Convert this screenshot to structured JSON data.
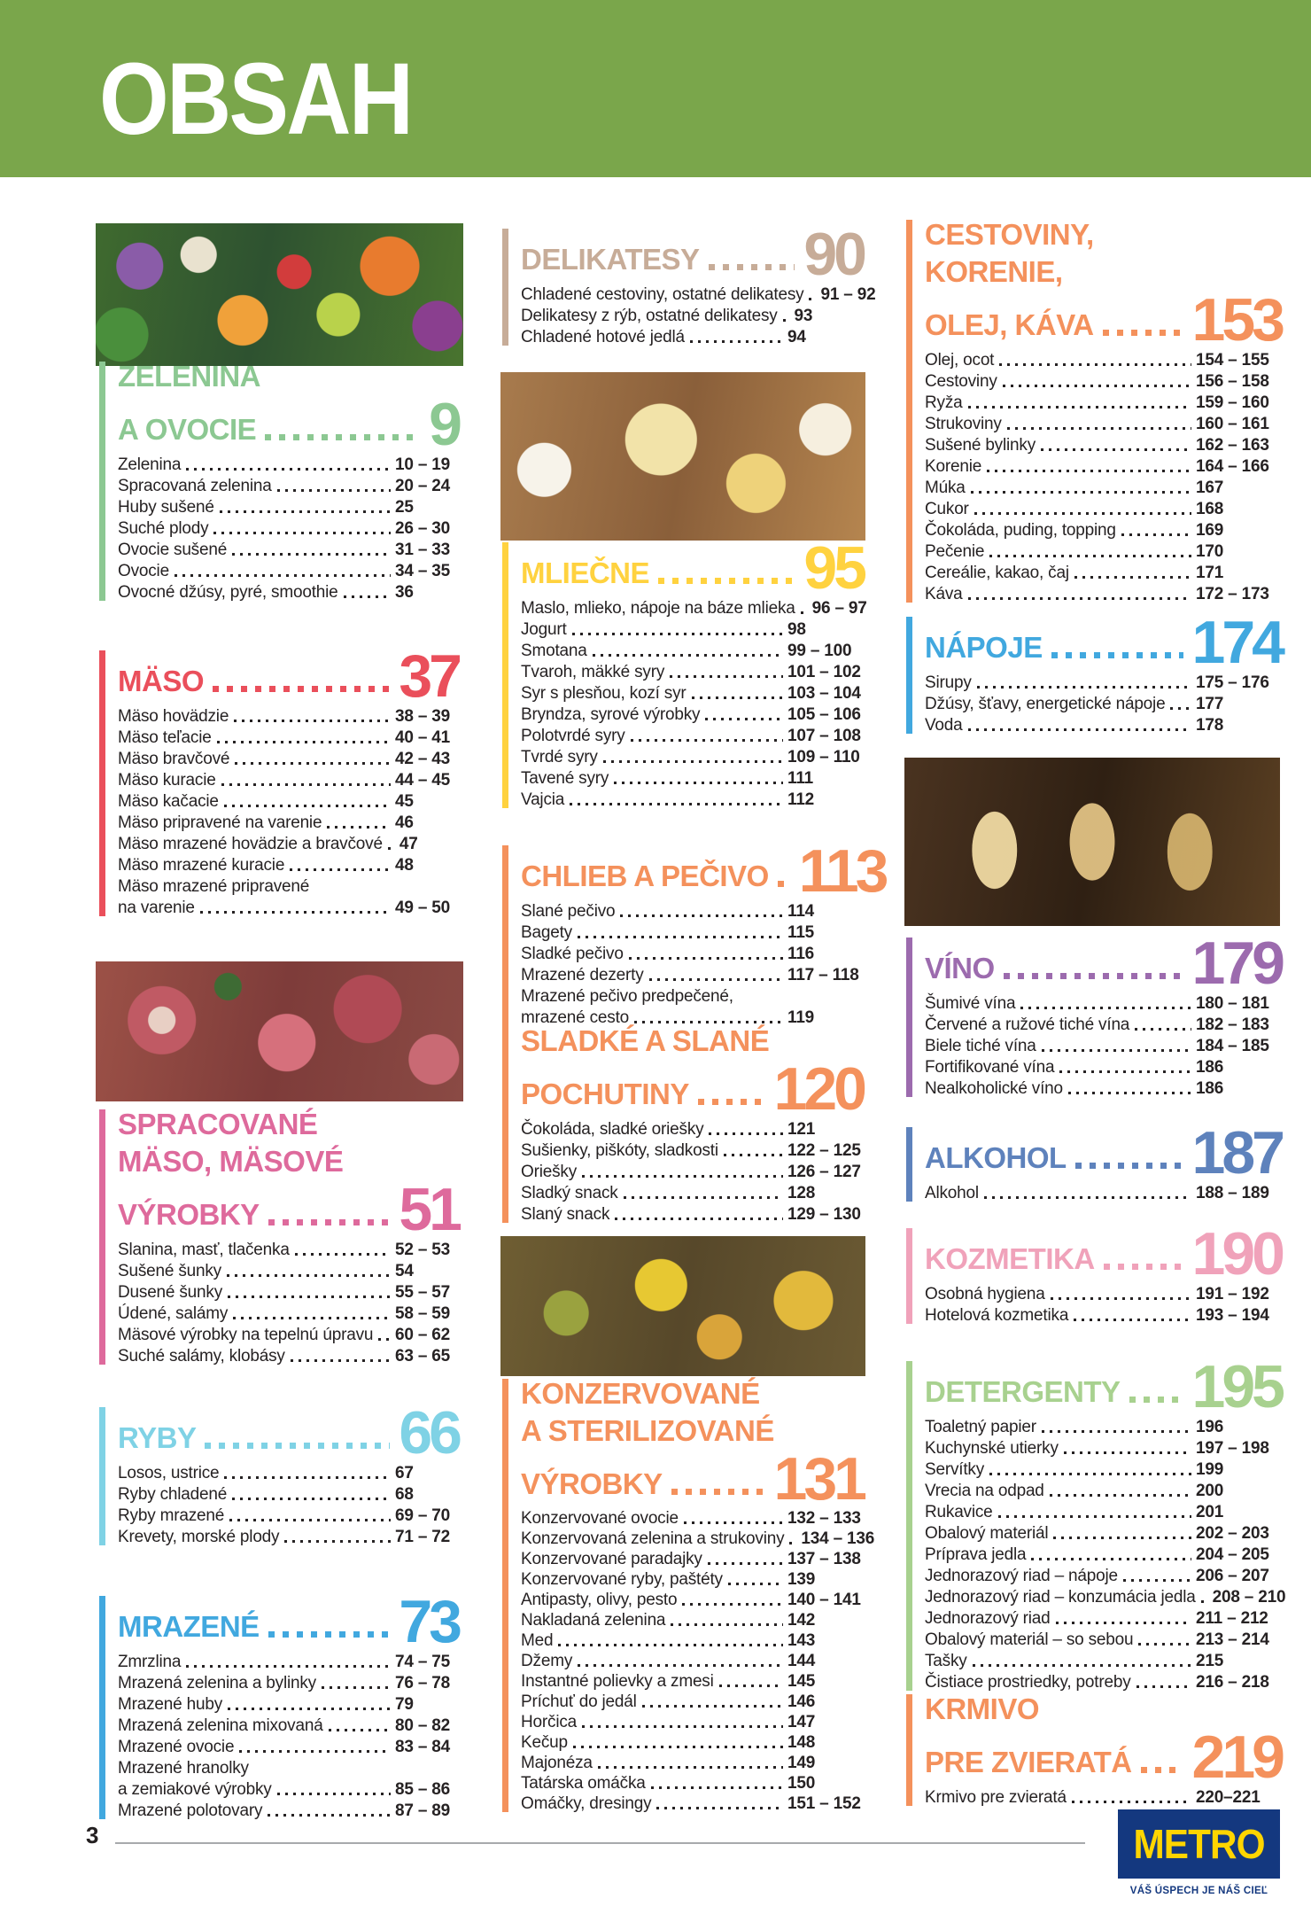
{
  "banner": {
    "title": "OBSAH"
  },
  "photos": {
    "veg": "vegetables-and-fruits-photo",
    "meat": "cold-cuts-platter-photo",
    "cheese": "cheese-and-dairy-photo",
    "jars": "preserved-vegetables-jars-photo",
    "wine": "wine-glasses-photo"
  },
  "sections": [
    {
      "id": "zelenina",
      "color": "#8CC892",
      "title_lines": [
        "ZELENINA",
        "A OVOCIE"
      ],
      "page": "9",
      "entries": [
        {
          "label": "Zelenina",
          "pages": "10 – 19"
        },
        {
          "label": "Spracovaná zelenina",
          "pages": "20 – 24"
        },
        {
          "label": "Huby sušené",
          "pages": "25"
        },
        {
          "label": "Suché plody",
          "pages": "26 – 30"
        },
        {
          "label": "Ovocie sušené",
          "pages": "31 – 33"
        },
        {
          "label": "Ovocie",
          "pages": "34 – 35"
        },
        {
          "label": "Ovocné džúsy, pyré, smoothie",
          "pages": "36"
        }
      ]
    },
    {
      "id": "maso",
      "color": "#EA4F5B",
      "title_lines": [
        "MÄSO"
      ],
      "page": "37",
      "entries": [
        {
          "label": "Mäso hovädzie",
          "pages": "38 – 39"
        },
        {
          "label": "Mäso teľacie",
          "pages": "40 – 41"
        },
        {
          "label": "Mäso bravčové",
          "pages": "42 – 43"
        },
        {
          "label": "Mäso kuracie",
          "pages": "44 – 45"
        },
        {
          "label": "Mäso kačacie",
          "pages": "45"
        },
        {
          "label": "Mäso pripravené na varenie",
          "pages": "46"
        },
        {
          "label": "Mäso mrazené hovädzie a bravčové",
          "pages": "47"
        },
        {
          "label": "Mäso mrazené kuracie",
          "pages": "48"
        },
        {
          "label": "Mäso mrazené pripravené",
          "pages": ""
        },
        {
          "label": "na varenie",
          "pages": "49 – 50"
        }
      ]
    },
    {
      "id": "spracovane",
      "color": "#DE6A9C",
      "title_lines": [
        "SPRACOVANÉ",
        "MÄSO, MÄSOVÉ",
        "VÝROBKY"
      ],
      "page": "51",
      "entries": [
        {
          "label": "Slanina, masť, tlačenka",
          "pages": "52 – 53"
        },
        {
          "label": "Sušené šunky",
          "pages": "54"
        },
        {
          "label": "Dusené šunky",
          "pages": "55 – 57"
        },
        {
          "label": "Údené, salámy",
          "pages": "58 – 59"
        },
        {
          "label": "Mäsové výrobky na tepelnú úpravu",
          "pages": "60 – 62"
        },
        {
          "label": "Suché salámy, klobásy",
          "pages": "63 – 65"
        }
      ]
    },
    {
      "id": "ryby",
      "color": "#7FD2E5",
      "title_lines": [
        "RYBY"
      ],
      "page": "66",
      "entries": [
        {
          "label": "Losos, ustrice",
          "pages": "67"
        },
        {
          "label": "Ryby chladené",
          "pages": "68"
        },
        {
          "label": "Ryby mrazené",
          "pages": "69 – 70"
        },
        {
          "label": "Krevety, morské plody",
          "pages": "71 – 72"
        }
      ]
    },
    {
      "id": "mrazene",
      "color": "#41A8DF",
      "title_lines": [
        "MRAZENÉ"
      ],
      "page": "73",
      "entries": [
        {
          "label": "Zmrzlina",
          "pages": "74 – 75"
        },
        {
          "label": "Mrazená zelenina a bylinky",
          "pages": "76 – 78"
        },
        {
          "label": "Mrazené huby",
          "pages": "79"
        },
        {
          "label": "Mrazená zelenina mixovaná",
          "pages": "80 – 82"
        },
        {
          "label": "Mrazené ovocie",
          "pages": "83 – 84"
        },
        {
          "label": "Mrazené hranolky",
          "pages": ""
        },
        {
          "label": "a zemiakové výrobky",
          "pages": "85 – 86"
        },
        {
          "label": "Mrazené polotovary",
          "pages": "87 – 89"
        }
      ]
    },
    {
      "id": "delikatesy",
      "color": "#C7AC98",
      "title_lines": [
        "DELIKATESY"
      ],
      "page": "90",
      "entries": [
        {
          "label": "Chladené cestoviny, ostatné delikatesy",
          "pages": "91 – 92"
        },
        {
          "label": "Delikatesy z rýb, ostatné delikatesy",
          "pages": "93"
        },
        {
          "label": "Chladené hotové jedlá",
          "pages": "94"
        }
      ]
    },
    {
      "id": "mliecne",
      "color": "#FFD23F",
      "title_lines": [
        "MLIEČNE"
      ],
      "page": "95",
      "entries": [
        {
          "label": "Maslo, mlieko, nápoje na báze mlieka",
          "pages": "96 – 97"
        },
        {
          "label": "Jogurt",
          "pages": "98"
        },
        {
          "label": "Smotana",
          "pages": "99 – 100"
        },
        {
          "label": "Tvaroh, mäkké syry",
          "pages": "101 – 102"
        },
        {
          "label": "Syr s plesňou, kozí syr",
          "pages": "103 – 104"
        },
        {
          "label": "Bryndza, syrové výrobky",
          "pages": "105 – 106"
        },
        {
          "label": "Polotvrdé syry",
          "pages": "107 – 108"
        },
        {
          "label": "Tvrdé syry",
          "pages": "109 – 110"
        },
        {
          "label": "Tavené syry",
          "pages": "111"
        },
        {
          "label": "Vajcia",
          "pages": "112"
        }
      ]
    },
    {
      "id": "chlieb",
      "color": "#F4915C",
      "title_lines": [
        "CHLIEB A PEČIVO"
      ],
      "page": "113",
      "entries": [
        {
          "label": "Slané pečivo",
          "pages": "114"
        },
        {
          "label": "Bagety",
          "pages": "115"
        },
        {
          "label": "Sladké pečivo",
          "pages": "116"
        },
        {
          "label": "Mrazené dezerty",
          "pages": "117 – 118"
        },
        {
          "label": "Mrazené pečivo predpečené,",
          "pages": ""
        },
        {
          "label": "mrazené cesto",
          "pages": "119"
        }
      ]
    },
    {
      "id": "sladke",
      "color": "#F4915C",
      "title_lines": [
        "SLADKÉ A SLANÉ",
        "POCHUTINY"
      ],
      "page": "120",
      "entries": [
        {
          "label": "Čokoláda, sladké oriešky",
          "pages": "121"
        },
        {
          "label": "Sušienky, piškóty, sladkosti",
          "pages": "122 – 125"
        },
        {
          "label": "Oriešky",
          "pages": "126 – 127"
        },
        {
          "label": "Sladký snack",
          "pages": "128"
        },
        {
          "label": "Slaný snack",
          "pages": "129 – 130"
        }
      ]
    },
    {
      "id": "konzervovane",
      "color": "#F4915C",
      "title_lines": [
        "KONZERVOVANÉ",
        "A STERILIZOVANÉ",
        "VÝROBKY"
      ],
      "page": "131",
      "entries": [
        {
          "label": "Konzervované ovocie",
          "pages": "132 – 133"
        },
        {
          "label": "Konzervovaná zelenina a strukoviny",
          "pages": "134 – 136"
        },
        {
          "label": "Konzervované paradajky",
          "pages": "137 – 138"
        },
        {
          "label": "Konzervované ryby, paštéty",
          "pages": "139"
        },
        {
          "label": "Antipasty, olivy, pesto",
          "pages": "140 – 141"
        },
        {
          "label": "Nakladaná zelenina",
          "pages": "142"
        },
        {
          "label": "Med",
          "pages": "143"
        },
        {
          "label": "Džemy",
          "pages": "144"
        },
        {
          "label": "Instantné polievky a zmesi",
          "pages": "145"
        },
        {
          "label": "Príchuť do jedál",
          "pages": "146"
        },
        {
          "label": "Horčica",
          "pages": "147"
        },
        {
          "label": "Kečup",
          "pages": "148"
        },
        {
          "label": "Majonéza",
          "pages": "149"
        },
        {
          "label": "Tatárska omáčka",
          "pages": "150"
        },
        {
          "label": "Omáčky, dresingy",
          "pages": "151 – 152"
        }
      ]
    },
    {
      "id": "cestoviny",
      "color": "#F4915C",
      "title_lines": [
        "CESTOVINY,",
        "KORENIE,",
        "OLEJ, KÁVA"
      ],
      "page": "153",
      "entries": [
        {
          "label": "Olej, ocot",
          "pages": "154 – 155"
        },
        {
          "label": "Cestoviny",
          "pages": "156 – 158"
        },
        {
          "label": "Ryža",
          "pages": "159 – 160"
        },
        {
          "label": "Strukoviny",
          "pages": "160 – 161"
        },
        {
          "label": "Sušené bylinky",
          "pages": "162 – 163"
        },
        {
          "label": "Korenie",
          "pages": "164 – 166"
        },
        {
          "label": "Múka",
          "pages": "167"
        },
        {
          "label": "Cukor",
          "pages": "168"
        },
        {
          "label": "Čokoláda, puding, topping",
          "pages": "169"
        },
        {
          "label": "Pečenie",
          "pages": "170"
        },
        {
          "label": "Cereálie, kakao, čaj",
          "pages": "171"
        },
        {
          "label": "Káva",
          "pages": "172 – 173"
        }
      ]
    },
    {
      "id": "napoje",
      "color": "#41A8DF",
      "title_lines": [
        "NÁPOJE"
      ],
      "page": "174",
      "entries": [
        {
          "label": "Sirupy",
          "pages": "175 – 176"
        },
        {
          "label": "Džúsy, šťavy, energetické nápoje",
          "pages": "177"
        },
        {
          "label": "Voda",
          "pages": "178"
        }
      ]
    },
    {
      "id": "vino",
      "color": "#9C6BAE",
      "title_lines": [
        "VÍNO"
      ],
      "page": "179",
      "entries": [
        {
          "label": "Šumivé vína",
          "pages": "180 – 181"
        },
        {
          "label": "Červené a ružové tiché vína",
          "pages": "182 – 183"
        },
        {
          "label": "Biele tiché vína",
          "pages": "184 – 185"
        },
        {
          "label": "Fortifikované vína",
          "pages": "186"
        },
        {
          "label": "Nealkoholické víno",
          "pages": "186"
        }
      ]
    },
    {
      "id": "alkohol",
      "color": "#5E82BC",
      "title_lines": [
        "ALKOHOL"
      ],
      "page": "187",
      "entries": [
        {
          "label": "Alkohol",
          "pages": "188 – 189"
        }
      ]
    },
    {
      "id": "kozmetika",
      "color": "#F0A2BA",
      "title_lines": [
        "KOZMETIKA"
      ],
      "page": "190",
      "entries": [
        {
          "label": "Osobná hygiena",
          "pages": "191 – 192"
        },
        {
          "label": "Hotelová kozmetika",
          "pages": "193 – 194"
        }
      ]
    },
    {
      "id": "detergenty",
      "color": "#A8D18F",
      "title_lines": [
        "DETERGENTY"
      ],
      "page": "195",
      "entries": [
        {
          "label": "Toaletný papier",
          "pages": "196"
        },
        {
          "label": "Kuchynské utierky",
          "pages": "197 – 198"
        },
        {
          "label": "Servítky",
          "pages": "199"
        },
        {
          "label": "Vrecia na odpad",
          "pages": "200"
        },
        {
          "label": "Rukavice",
          "pages": "201"
        },
        {
          "label": "Obalový materiál",
          "pages": "202 – 203"
        },
        {
          "label": "Príprava jedla",
          "pages": "204 – 205"
        },
        {
          "label": "Jednorazový riad – nápoje",
          "pages": "206 – 207"
        },
        {
          "label": "Jednorazový riad – konzumácia jedla",
          "pages": "208 – 210"
        },
        {
          "label": "Jednorazový riad",
          "pages": "211 – 212"
        },
        {
          "label": "Obalový materiál – so sebou",
          "pages": "213 – 214"
        },
        {
          "label": "Tašky",
          "pages": "215"
        },
        {
          "label": "Čistiace prostriedky, potreby",
          "pages": "216 – 218"
        }
      ]
    },
    {
      "id": "krmivo",
      "color": "#F4915C",
      "title_lines": [
        "KRMIVO",
        "PRE ZVIERATÁ"
      ],
      "page": "219",
      "entries": [
        {
          "label": "Krmivo pre zvieratá",
          "pages": "220–221"
        }
      ]
    }
  ],
  "footer": {
    "page_number": "3",
    "logo_text": "METRO",
    "tagline": "VÁŠ ÚSPECH JE NÁŠ CIEĽ"
  }
}
